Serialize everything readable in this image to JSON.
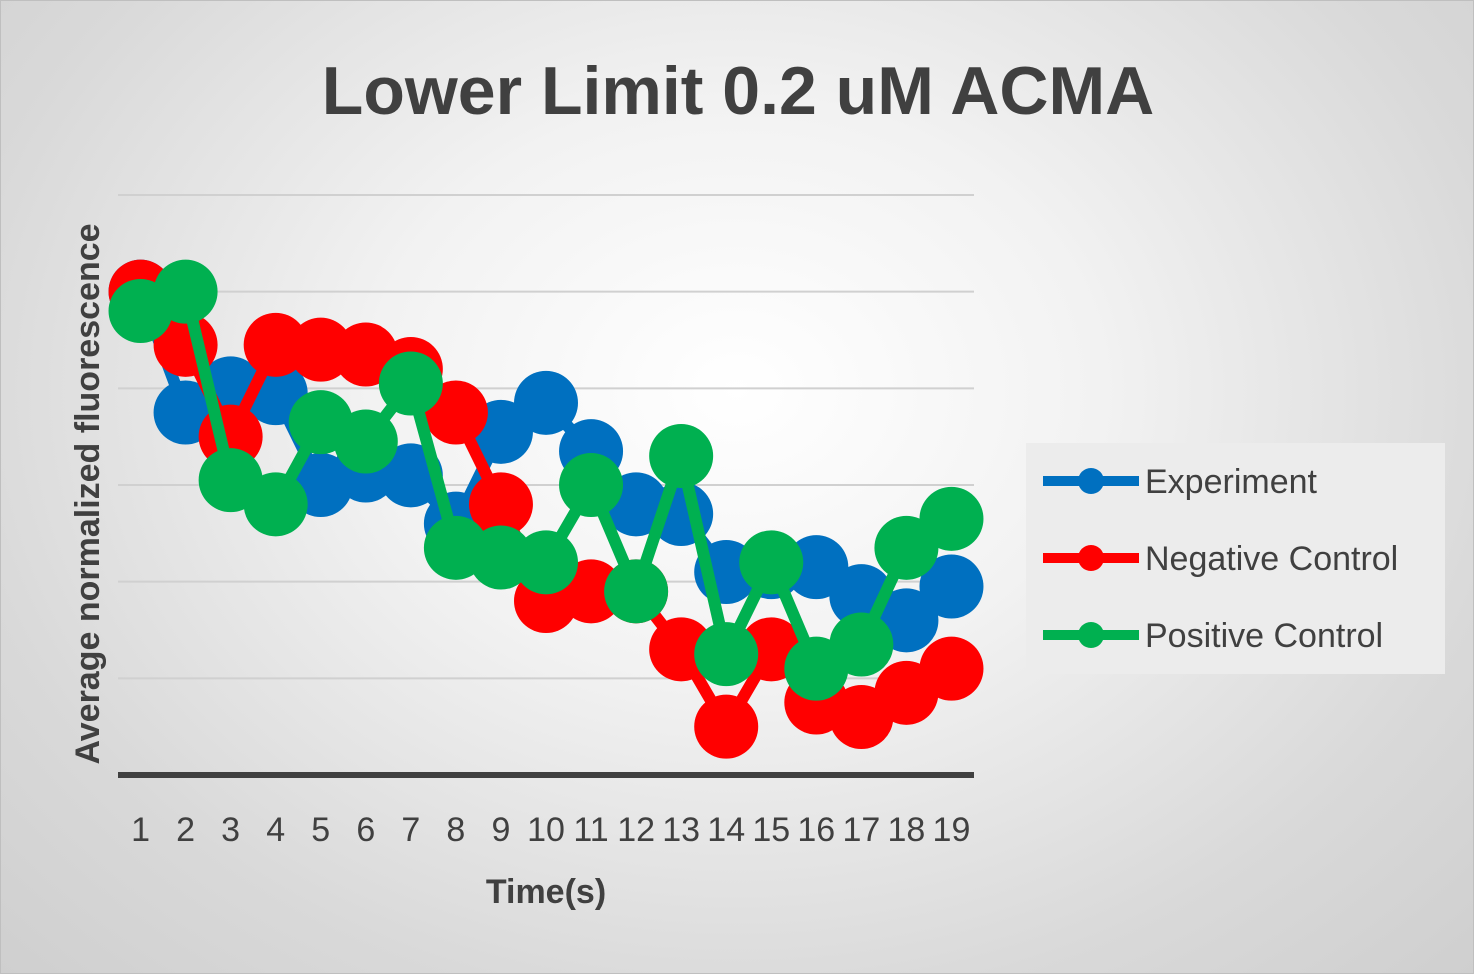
{
  "chart_data": {
    "type": "line",
    "title": "Lower Limit 0.2 uM ACMA",
    "xlabel": "Time(s)",
    "ylabel": "Average normalized fluorescence",
    "categories": [
      "1",
      "2",
      "3",
      "4",
      "5",
      "6",
      "7",
      "8",
      "9",
      "10",
      "11",
      "12",
      "13",
      "14",
      "15",
      "16",
      "17",
      "18",
      "19"
    ],
    "ylim": [
      0,
      6
    ],
    "grid": true,
    "legend_position": "right",
    "series": [
      {
        "name": "Experiment",
        "color": "#0070C0",
        "values": [
          5.0,
          3.75,
          4.0,
          3.95,
          3.0,
          3.15,
          3.1,
          2.6,
          3.55,
          3.85,
          3.35,
          2.8,
          2.7,
          2.1,
          2.15,
          2.15,
          1.85,
          1.6,
          1.95
        ]
      },
      {
        "name": "Negative Control",
        "color": "#FF0000",
        "values": [
          5.0,
          4.45,
          3.5,
          4.45,
          4.4,
          4.35,
          4.2,
          3.75,
          2.8,
          1.8,
          1.9,
          1.9,
          1.3,
          0.5,
          1.3,
          0.75,
          0.6,
          0.85,
          1.1
        ]
      },
      {
        "name": "Positive Control",
        "color": "#00B050",
        "values": [
          4.8,
          5.0,
          3.05,
          2.8,
          3.65,
          3.45,
          4.05,
          2.35,
          2.25,
          2.2,
          3.0,
          1.9,
          3.3,
          1.25,
          2.2,
          1.1,
          1.35,
          2.35,
          2.65
        ]
      }
    ]
  }
}
